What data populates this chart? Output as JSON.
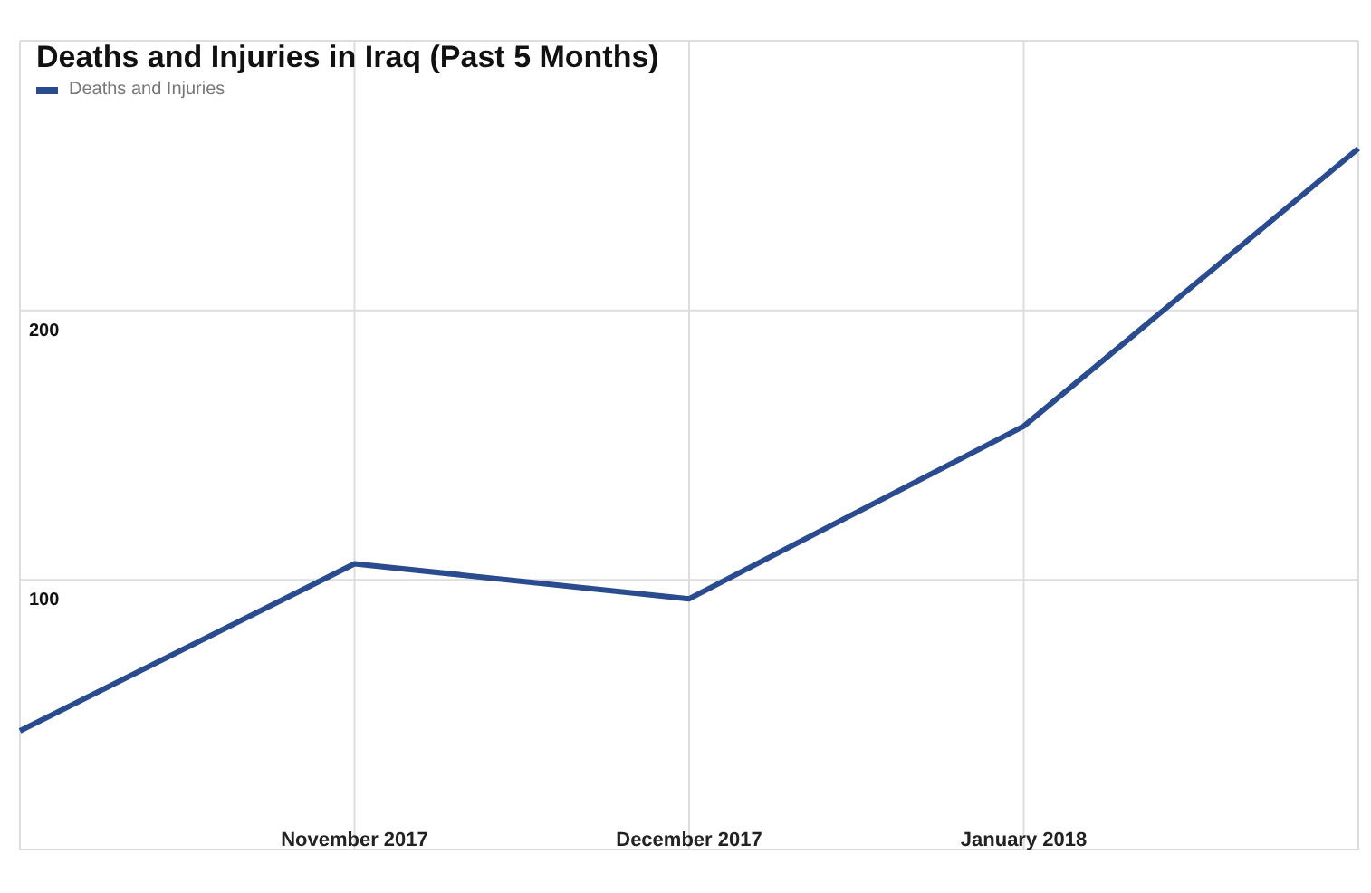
{
  "chart_data": {
    "type": "line",
    "title": "Deaths and Injuries in Iraq (Past 5 Months)",
    "categories": [
      null,
      "November 2017",
      "December 2017",
      "January 2018",
      null
    ],
    "series": [
      {
        "name": "Deaths and Injuries",
        "color": "#2a4b8d",
        "values": [
          44,
          106,
          93,
          157,
          260
        ]
      }
    ],
    "ylim": [
      0,
      300
    ],
    "yticks": [
      100,
      200,
      {
        "value": 300,
        "label": null
      }
    ],
    "grid": true,
    "legend": "top left",
    "marker": "none",
    "line_style": "solid"
  }
}
